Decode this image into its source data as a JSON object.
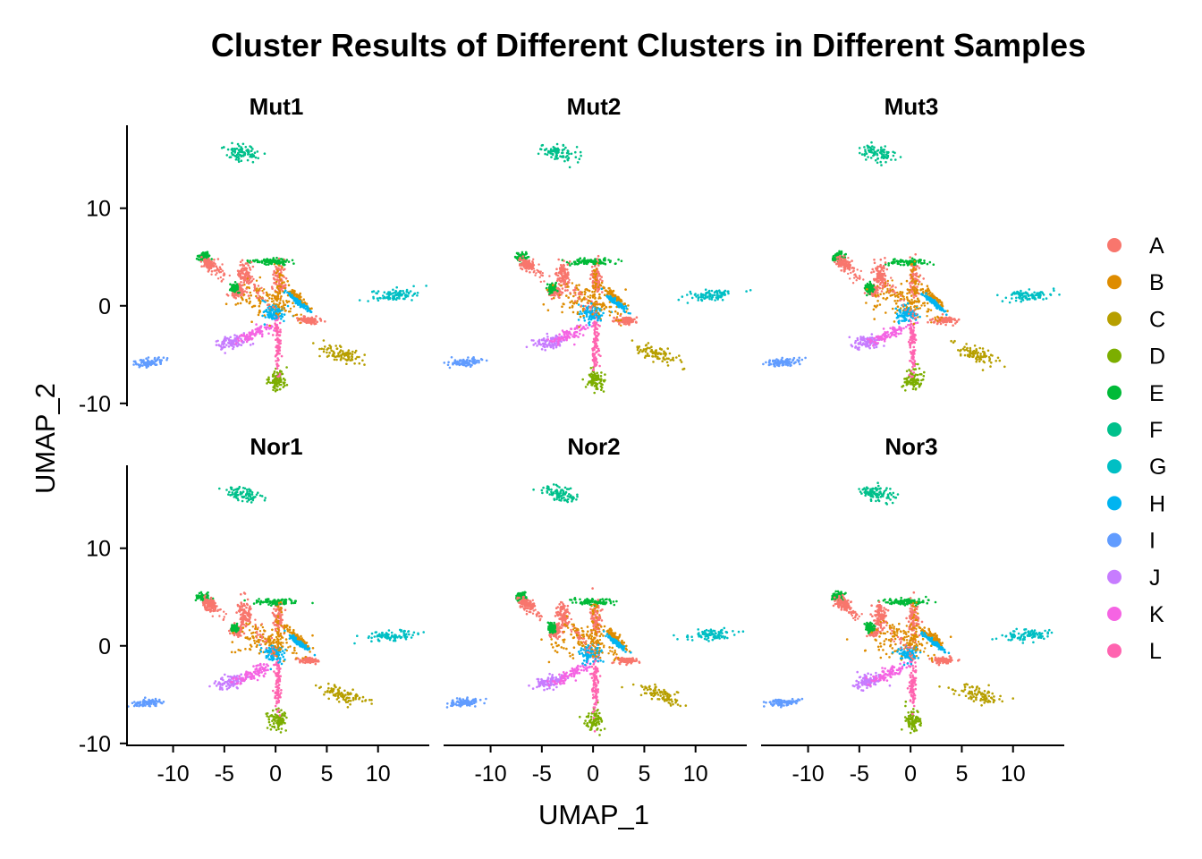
{
  "chart_data": {
    "type": "scatter",
    "title": "Cluster Results of Different Clusters in Different Samples",
    "xlabel": "UMAP_1",
    "ylabel": "UMAP_2",
    "xlim": [
      -14.5,
      15
    ],
    "ylim": [
      -10.2,
      18.5
    ],
    "x_ticks": [
      -10,
      -5,
      0,
      5,
      10
    ],
    "x_tick_labels": [
      "-10",
      "-5",
      "0",
      "5",
      "10"
    ],
    "y_ticks": [
      10,
      0,
      -10
    ],
    "y_tick_labels": [
      "10",
      "0",
      "-10"
    ],
    "grid": false,
    "legend_position": "right",
    "facets": [
      "Mut1",
      "Mut2",
      "Mut3",
      "Nor1",
      "Nor2",
      "Nor3"
    ],
    "legend": [
      {
        "label": "A",
        "color": "#F8766D"
      },
      {
        "label": "B",
        "color": "#DE8C00"
      },
      {
        "label": "C",
        "color": "#B79F00"
      },
      {
        "label": "D",
        "color": "#7CAE00"
      },
      {
        "label": "E",
        "color": "#00BA38"
      },
      {
        "label": "F",
        "color": "#00C08B"
      },
      {
        "label": "G",
        "color": "#00BFC4"
      },
      {
        "label": "H",
        "color": "#00B4F0"
      },
      {
        "label": "I",
        "color": "#619CFF"
      },
      {
        "label": "J",
        "color": "#C77CFF"
      },
      {
        "label": "K",
        "color": "#F564E3"
      },
      {
        "label": "L",
        "color": "#FF64B0"
      }
    ],
    "clusters": [
      {
        "label": "F",
        "shape": "blob",
        "cx": -3.3,
        "cy": 15.6,
        "rx": 0.7,
        "ry": 1.6,
        "angle": 80
      },
      {
        "label": "G",
        "shape": "blob",
        "cx": 11.5,
        "cy": 1.1,
        "rx": 2.2,
        "ry": 0.5,
        "angle": 5
      },
      {
        "label": "C",
        "shape": "blob",
        "cx": 6.5,
        "cy": -5.0,
        "rx": 2.1,
        "ry": 0.7,
        "angle": -20
      },
      {
        "label": "D",
        "shape": "blob",
        "cx": 0.2,
        "cy": -7.6,
        "rx": 0.8,
        "ry": 1.0,
        "angle": 0
      },
      {
        "label": "I",
        "shape": "blob",
        "cx": -12.5,
        "cy": -5.8,
        "rx": 1.4,
        "ry": 0.35,
        "angle": 5
      },
      {
        "label": "J",
        "shape": "blob",
        "cx": -4.2,
        "cy": -3.7,
        "rx": 1.4,
        "ry": 0.6,
        "angle": 10
      },
      {
        "label": "K",
        "shape": "blob",
        "cx": -2.0,
        "cy": -2.8,
        "rx": 2.0,
        "ry": 0.5,
        "angle": 25
      },
      {
        "label": "L",
        "shape": "blob",
        "cx": 0.2,
        "cy": -4.0,
        "rx": 0.3,
        "ry": 2.5,
        "angle": 0
      },
      {
        "label": "A",
        "shape": "blob",
        "cx": 0.3,
        "cy": 2.8,
        "rx": 0.5,
        "ry": 1.8,
        "angle": 0
      },
      {
        "label": "E",
        "shape": "blob",
        "cx": -0.2,
        "cy": 4.5,
        "rx": 2.0,
        "ry": 0.3,
        "angle": 0
      },
      {
        "label": "E",
        "shape": "blob",
        "cx": -7.0,
        "cy": 5.0,
        "rx": 0.5,
        "ry": 0.4,
        "angle": 0
      },
      {
        "label": "A",
        "shape": "blob",
        "cx": -6.5,
        "cy": 4.3,
        "rx": 0.7,
        "ry": 0.5,
        "angle": -40
      },
      {
        "label": "A",
        "shape": "blob",
        "cx": -3.0,
        "cy": 3.2,
        "rx": 0.6,
        "ry": 1.2,
        "angle": 0
      },
      {
        "label": "A",
        "shape": "blob",
        "cx": -3.7,
        "cy": 1.5,
        "rx": 0.5,
        "ry": 0.5,
        "angle": 0
      },
      {
        "label": "E",
        "shape": "blob",
        "cx": -4.0,
        "cy": 1.8,
        "rx": 0.3,
        "ry": 0.4,
        "angle": 0
      },
      {
        "label": "A",
        "shape": "blob",
        "cx": 3.2,
        "cy": -1.5,
        "rx": 1.0,
        "ry": 0.3,
        "angle": 0
      },
      {
        "label": "B",
        "shape": "blob",
        "cx": 2.2,
        "cy": 0.8,
        "rx": 1.4,
        "ry": 0.3,
        "angle": -45
      },
      {
        "label": "B",
        "shape": "blob",
        "cx": -1.0,
        "cy": 0.5,
        "rx": 2.8,
        "ry": 1.6,
        "angle": 0
      },
      {
        "label": "H",
        "shape": "blob",
        "cx": -0.2,
        "cy": -0.8,
        "rx": 1.0,
        "ry": 0.8,
        "angle": 0
      },
      {
        "label": "H",
        "shape": "blob",
        "cx": 2.3,
        "cy": 0.3,
        "rx": 1.3,
        "ry": 0.2,
        "angle": -40
      }
    ]
  }
}
